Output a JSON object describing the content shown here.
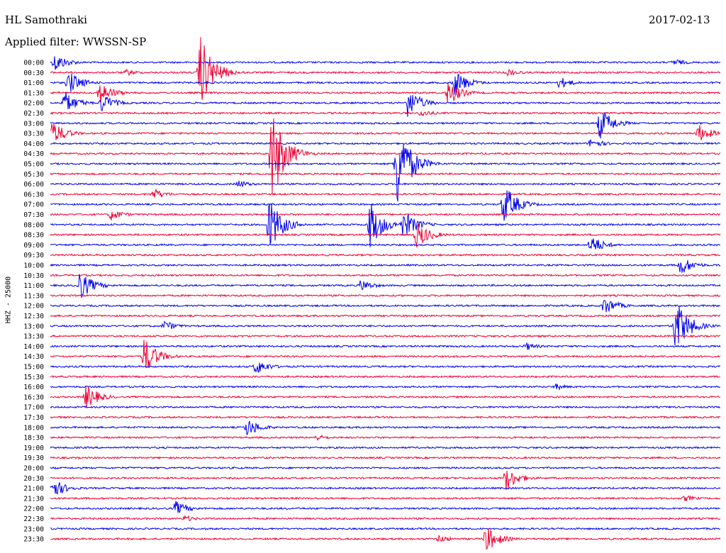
{
  "header": {
    "station": "HL Samothraki",
    "date": "2017-02-13",
    "filter": "Applied filter: WWSSN-SP"
  },
  "side_label": "HHZ - 25000",
  "colors": {
    "odd": "#0000ee",
    "even": "#ee0033"
  },
  "chart_data": {
    "type": "line",
    "title": "HL Samothraki",
    "subtitle": "Applied filter: WWSSN-SP",
    "xlabel": "",
    "ylabel": "HHZ - 25000",
    "xlim_min": [
      0,
      30
    ],
    "categories": [
      "00:00",
      "00:30",
      "01:00",
      "01:30",
      "02:00",
      "02:30",
      "03:00",
      "03:30",
      "04:00",
      "04:30",
      "05:00",
      "05:30",
      "06:00",
      "06:30",
      "07:00",
      "07:30",
      "08:00",
      "08:30",
      "09:00",
      "09:30",
      "10:00",
      "10:30",
      "11:00",
      "11:30",
      "12:00",
      "12:30",
      "13:00",
      "13:30",
      "14:00",
      "14:30",
      "15:00",
      "15:30",
      "16:00",
      "16:30",
      "17:00",
      "17:30",
      "18:00",
      "18:30",
      "19:00",
      "19:30",
      "20:00",
      "20:30",
      "21:00",
      "21:30",
      "22:00",
      "22:30",
      "23:00",
      "23:30"
    ],
    "grid": false,
    "events": [
      {
        "row": 0,
        "t": 0.2,
        "amp": 14
      },
      {
        "row": 0,
        "t": 27.9,
        "amp": 6
      },
      {
        "row": 1,
        "t": 6.7,
        "amp": 55
      },
      {
        "row": 1,
        "t": 3.4,
        "amp": 5
      },
      {
        "row": 1,
        "t": 20.5,
        "amp": 6
      },
      {
        "row": 2,
        "t": 18.1,
        "amp": 20
      },
      {
        "row": 2,
        "t": 22.8,
        "amp": 9
      },
      {
        "row": 2,
        "t": 0.8,
        "amp": 18
      },
      {
        "row": 3,
        "t": 17.8,
        "amp": 18
      },
      {
        "row": 3,
        "t": 2.2,
        "amp": 17
      },
      {
        "row": 4,
        "t": 0.6,
        "amp": 18
      },
      {
        "row": 4,
        "t": 2.3,
        "amp": 14
      },
      {
        "row": 4,
        "t": 16.0,
        "amp": 22
      },
      {
        "row": 5,
        "t": 16.6,
        "amp": 6
      },
      {
        "row": 6,
        "t": 24.6,
        "amp": 24
      },
      {
        "row": 7,
        "t": 0.1,
        "amp": 18
      },
      {
        "row": 7,
        "t": 29.0,
        "amp": 14
      },
      {
        "row": 8,
        "t": 24.2,
        "amp": 8
      },
      {
        "row": 9,
        "t": 9.9,
        "amp": 70
      },
      {
        "row": 10,
        "t": 15.5,
        "amp": 70
      },
      {
        "row": 12,
        "t": 8.4,
        "amp": 6
      },
      {
        "row": 13,
        "t": 4.6,
        "amp": 9
      },
      {
        "row": 14,
        "t": 20.3,
        "amp": 30
      },
      {
        "row": 15,
        "t": 2.7,
        "amp": 9
      },
      {
        "row": 16,
        "t": 9.8,
        "amp": 40
      },
      {
        "row": 16,
        "t": 14.3,
        "amp": 35
      },
      {
        "row": 16,
        "t": 15.8,
        "amp": 22
      },
      {
        "row": 17,
        "t": 16.4,
        "amp": 20
      },
      {
        "row": 18,
        "t": 24.2,
        "amp": 15
      },
      {
        "row": 20,
        "t": 28.2,
        "amp": 15
      },
      {
        "row": 22,
        "t": 1.3,
        "amp": 22
      },
      {
        "row": 22,
        "t": 13.9,
        "amp": 9
      },
      {
        "row": 24,
        "t": 24.8,
        "amp": 14
      },
      {
        "row": 26,
        "t": 28.0,
        "amp": 40
      },
      {
        "row": 26,
        "t": 5.1,
        "amp": 8
      },
      {
        "row": 28,
        "t": 21.3,
        "amp": 6
      },
      {
        "row": 29,
        "t": 4.2,
        "amp": 28
      },
      {
        "row": 30,
        "t": 9.2,
        "amp": 12
      },
      {
        "row": 32,
        "t": 22.6,
        "amp": 5
      },
      {
        "row": 33,
        "t": 1.6,
        "amp": 18
      },
      {
        "row": 36,
        "t": 8.8,
        "amp": 14
      },
      {
        "row": 37,
        "t": 11.9,
        "amp": 5
      },
      {
        "row": 41,
        "t": 20.4,
        "amp": 18
      },
      {
        "row": 42,
        "t": 0.1,
        "amp": 15
      },
      {
        "row": 43,
        "t": 28.4,
        "amp": 5
      },
      {
        "row": 44,
        "t": 5.6,
        "amp": 11
      },
      {
        "row": 45,
        "t": 6.0,
        "amp": 5
      },
      {
        "row": 47,
        "t": 17.4,
        "amp": 6
      },
      {
        "row": 47,
        "t": 19.5,
        "amp": 20
      }
    ]
  }
}
